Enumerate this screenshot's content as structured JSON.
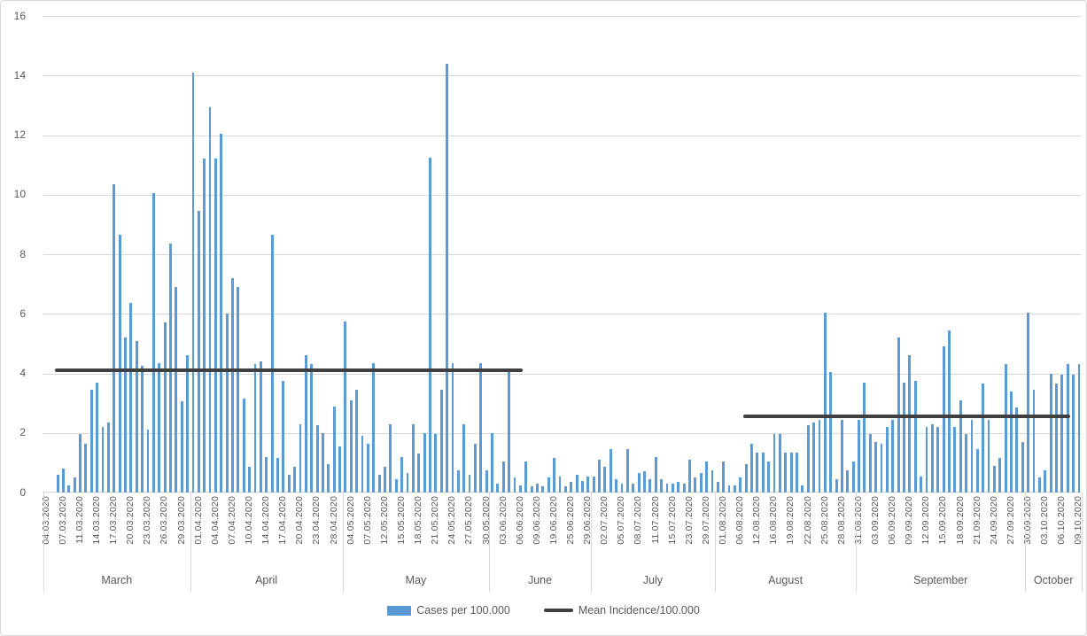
{
  "chart_data": {
    "type": "bar",
    "title": "",
    "grid": true,
    "legend_position": "bottom",
    "colors": {
      "bar": "#5B9BD5",
      "mean_line": "#404040",
      "grid": "#D9D9D9",
      "text": "#595959"
    },
    "y_axis": {
      "min": 0,
      "max": 16,
      "step": 2,
      "ticks": [
        0,
        2,
        4,
        6,
        8,
        10,
        12,
        14,
        16
      ]
    },
    "tick_interval": 3,
    "x_tick_labels": [
      "04.03.2020",
      "07.03.2020",
      "11.03.2020",
      "14.03.2020",
      "17.03.2020",
      "20.03.2020",
      "23.03.2020",
      "26.03.2020",
      "29.03.2020",
      "01.04.2020",
      "04.04.2020",
      "07.04.2020",
      "10.04.2020",
      "14.04.2020",
      "17.04.2020",
      "20.04.2020",
      "23.04.2020",
      "28.04.2020",
      "04.05.2020",
      "07.05.2020",
      "12.05.2020",
      "15.05.2020",
      "18.05.2020",
      "21.05.2020",
      "24.05.2020",
      "27.05.2020",
      "30.05.2020",
      "03.06.2020",
      "06.06.2020",
      "09.06.2020",
      "19.06.2020",
      "25.06.2020",
      "29.06.2020",
      "02.07.2020",
      "05.07.2020",
      "08.07.2020",
      "11.07.2020",
      "15.07.2020",
      "23.07.2020",
      "29.07.2020",
      "01.08.2020",
      "06.08.2020",
      "12.08.2020",
      "16.08.2020",
      "19.08.2020",
      "22.08.2020",
      "25.08.2020",
      "28.08.2020",
      "31.08.2020",
      "03.09.2020",
      "06.09.2020",
      "09.09.2020",
      "12.09.2020",
      "15.09.2020",
      "18.09.2020",
      "21.09.2020",
      "24.09.2020",
      "27.09.2020",
      "30.09.2020",
      "03.10.2020",
      "06.10.2020",
      "09.10.2020"
    ],
    "month_groups": [
      {
        "label": "March",
        "start": 0,
        "end": 26
      },
      {
        "label": "April",
        "start": 26,
        "end": 53
      },
      {
        "label": "May",
        "start": 53,
        "end": 79
      },
      {
        "label": "June",
        "start": 79,
        "end": 97
      },
      {
        "label": "July",
        "start": 97,
        "end": 119
      },
      {
        "label": "August",
        "start": 119,
        "end": 144
      },
      {
        "label": "September",
        "start": 144,
        "end": 174
      },
      {
        "label": "October",
        "start": 174,
        "end": 184
      }
    ],
    "series": [
      {
        "name": "Cases per 100.000",
        "color": "#5B9BD5",
        "values": [
          0,
          0,
          0.6,
          0.8,
          0.25,
          0.5,
          1.95,
          1.65,
          3.45,
          3.7,
          2.2,
          2.35,
          10.35,
          8.65,
          5.2,
          6.35,
          5.1,
          4.25,
          2.1,
          10.05,
          4.35,
          5.7,
          8.35,
          6.9,
          3.05,
          4.6,
          14.1,
          9.45,
          11.2,
          12.95,
          11.2,
          12.05,
          6.0,
          7.2,
          6.9,
          3.15,
          0.85,
          4.3,
          4.4,
          1.2,
          8.65,
          1.15,
          3.75,
          0.6,
          0.85,
          2.3,
          4.6,
          4.3,
          2.25,
          2.0,
          0.95,
          2.9,
          1.55,
          5.75,
          3.1,
          3.45,
          1.9,
          1.65,
          4.35,
          0.6,
          0.85,
          2.3,
          0.45,
          1.2,
          0.65,
          2.3,
          1.3,
          2.0,
          11.25,
          1.95,
          3.45,
          14.4,
          4.35,
          0.75,
          2.3,
          0.6,
          1.65,
          4.35,
          0.75,
          2.0,
          0.3,
          1.05,
          4.1,
          0.5,
          0.25,
          1.05,
          0.2,
          0.3,
          0.2,
          0.5,
          1.15,
          0.55,
          0.2,
          0.35,
          0.6,
          0.4,
          0.55,
          0.55,
          1.1,
          0.85,
          1.45,
          0.45,
          0.3,
          1.45,
          0.3,
          0.65,
          0.7,
          0.45,
          1.2,
          0.45,
          0.3,
          0.3,
          0.35,
          0.3,
          1.1,
          0.5,
          0.65,
          1.05,
          0.75,
          0.35,
          1.05,
          0.25,
          0.25,
          0.5,
          0.95,
          1.65,
          1.35,
          1.35,
          1.05,
          1.95,
          1.95,
          1.35,
          1.35,
          1.35,
          0.25,
          2.25,
          2.35,
          2.45,
          6.05,
          4.05,
          0.45,
          2.45,
          0.75,
          1.05,
          2.45,
          3.7,
          1.95,
          1.7,
          1.65,
          2.2,
          2.45,
          5.2,
          3.7,
          4.6,
          3.75,
          0.55,
          2.2,
          2.3,
          2.2,
          4.9,
          5.45,
          2.2,
          3.1,
          1.95,
          2.45,
          1.45,
          3.65,
          2.45,
          0.9,
          1.15,
          4.3,
          3.4,
          2.85,
          1.7,
          6.05,
          3.45,
          0.5,
          0.75,
          4.0,
          3.65,
          3.95,
          4.3,
          3.95,
          4.3
        ]
      }
    ],
    "mean_lines": [
      {
        "name": "Mean Incidence/100.000",
        "value": 4.1,
        "start_index": 2,
        "end_index": 85,
        "color": "#404040"
      },
      {
        "name": "Mean Incidence/100.000",
        "value": 2.55,
        "start_index": 124,
        "end_index": 182,
        "color": "#404040"
      }
    ],
    "legend": [
      {
        "label": "Cases per 100.000",
        "type": "bar",
        "color": "#5B9BD5"
      },
      {
        "label": "Mean Incidence/100.000",
        "type": "line",
        "color": "#404040"
      }
    ]
  }
}
